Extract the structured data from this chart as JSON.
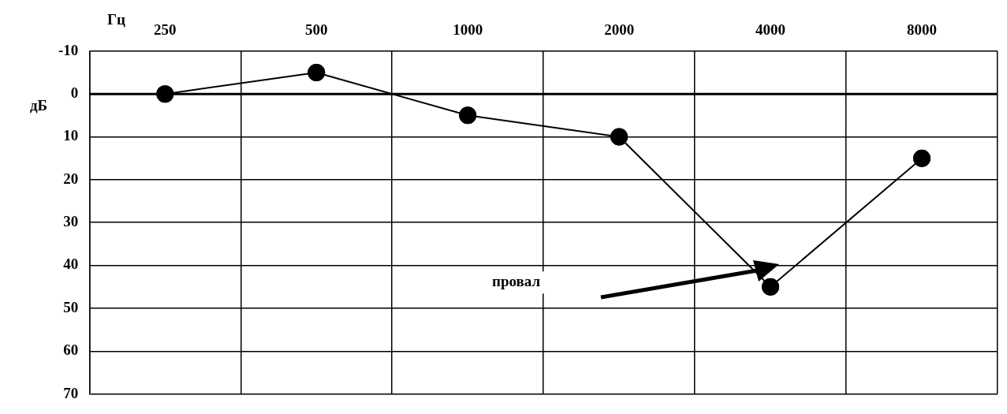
{
  "chart_data": {
    "type": "line",
    "xlabel": "Гц",
    "ylabel": "дБ",
    "categories": [
      "250",
      "500",
      "1000",
      "2000",
      "4000",
      "8000"
    ],
    "series": [
      {
        "color": "#000000",
        "values": [
          0,
          -5,
          5,
          10,
          45,
          15
        ]
      }
    ],
    "ylim": [
      70,
      -10
    ],
    "yticks": [
      -10,
      0,
      10,
      20,
      30,
      40,
      50,
      60,
      70
    ],
    "grid": true,
    "legend": false,
    "marker": "circle",
    "line_style": "solid",
    "ref_lines": [
      {
        "axis": "y",
        "value": 0,
        "color": "#000000"
      }
    ],
    "annotations": [
      "провал"
    ]
  }
}
